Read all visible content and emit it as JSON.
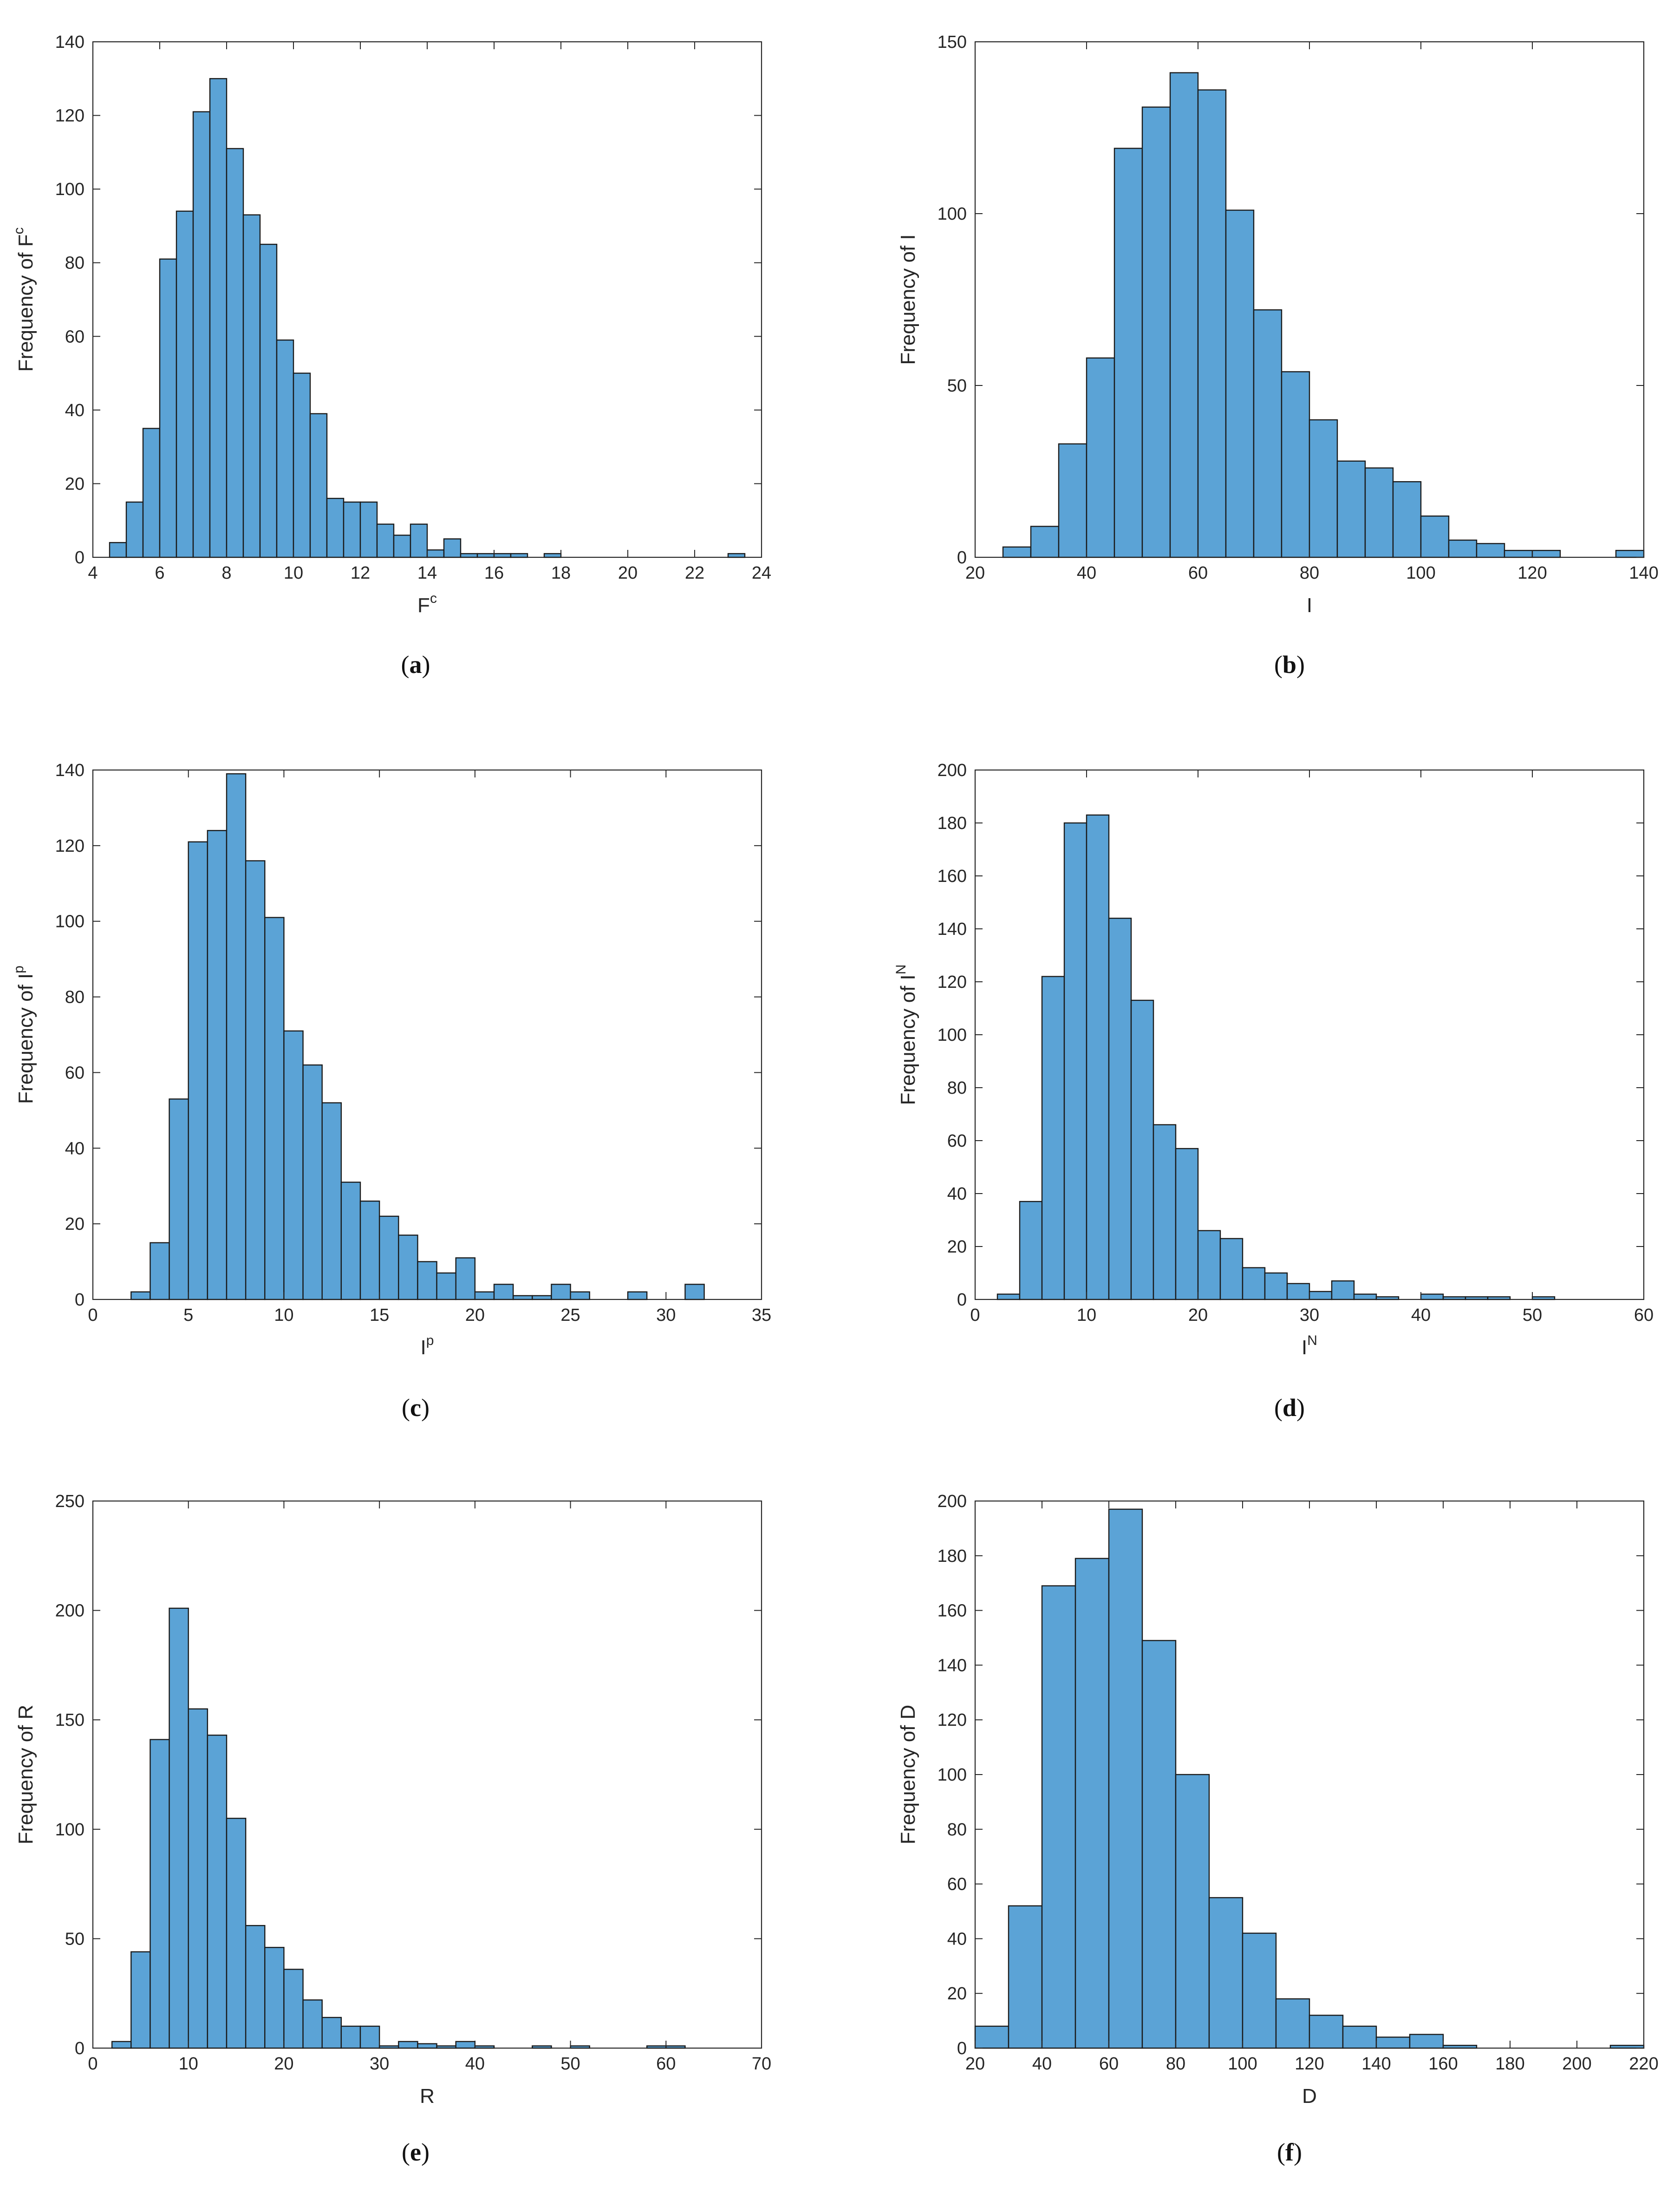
{
  "chart_data": [
    {
      "type": "bar",
      "id": "a",
      "caption_letter": "a",
      "xlabel_base": "F",
      "xlabel_sup": "c",
      "ylabel_base": "Frequency of F",
      "ylabel_sup": "c",
      "xlim": [
        4,
        24
      ],
      "ylim": [
        0,
        140
      ],
      "xticks": [
        4,
        6,
        8,
        10,
        12,
        14,
        16,
        18,
        20,
        22,
        24
      ],
      "yticks": [
        0,
        20,
        40,
        60,
        80,
        100,
        120,
        140
      ],
      "bin_start": 4.5,
      "bin_width": 0.5,
      "values": [
        4,
        15,
        35,
        81,
        94,
        121,
        130,
        111,
        93,
        85,
        59,
        50,
        39,
        16,
        15,
        15,
        9,
        6,
        9,
        2,
        5,
        1,
        1,
        1,
        1,
        0,
        1,
        0,
        0,
        0,
        0,
        0,
        0,
        0,
        0,
        0,
        0,
        1
      ]
    },
    {
      "type": "bar",
      "id": "b",
      "caption_letter": "b",
      "xlabel_base": "I",
      "xlabel_sup": "",
      "ylabel_base": "Frequency of I",
      "ylabel_sup": "",
      "xlim": [
        20,
        140
      ],
      "ylim": [
        0,
        150
      ],
      "xticks": [
        20,
        40,
        60,
        80,
        100,
        120,
        140
      ],
      "yticks": [
        0,
        50,
        100,
        150
      ],
      "bin_start": 25,
      "bin_width": 5,
      "values": [
        3,
        9,
        33,
        58,
        119,
        131,
        141,
        136,
        101,
        72,
        54,
        40,
        28,
        26,
        22,
        12,
        5,
        4,
        2,
        2,
        0,
        0,
        2
      ]
    },
    {
      "type": "bar",
      "id": "c",
      "caption_letter": "c",
      "xlabel_base": "I",
      "xlabel_sup": "p",
      "ylabel_base": "Frequency of I",
      "ylabel_sup": "p",
      "xlim": [
        0,
        35
      ],
      "ylim": [
        0,
        140
      ],
      "xticks": [
        0,
        5,
        10,
        15,
        20,
        25,
        30,
        35
      ],
      "yticks": [
        0,
        20,
        40,
        60,
        80,
        100,
        120,
        140
      ],
      "bin_start": 2,
      "bin_width": 1,
      "values": [
        2,
        15,
        53,
        121,
        124,
        139,
        116,
        101,
        71,
        62,
        52,
        31,
        26,
        22,
        17,
        10,
        7,
        11,
        2,
        4,
        1,
        1,
        4,
        2,
        0,
        0,
        2,
        0,
        0,
        4
      ]
    },
    {
      "type": "bar",
      "id": "d",
      "caption_letter": "d",
      "xlabel_base": "I",
      "xlabel_sup": "N",
      "ylabel_base": "Frequency of I",
      "ylabel_sup": "N",
      "xlim": [
        0,
        60
      ],
      "ylim": [
        0,
        200
      ],
      "xticks": [
        0,
        10,
        20,
        30,
        40,
        50,
        60
      ],
      "yticks": [
        0,
        20,
        40,
        60,
        80,
        100,
        120,
        140,
        160,
        180,
        200
      ],
      "bin_start": 2,
      "bin_width": 2,
      "values": [
        2,
        37,
        122,
        180,
        183,
        144,
        113,
        66,
        57,
        26,
        23,
        12,
        10,
        6,
        3,
        7,
        2,
        1,
        0,
        2,
        1,
        1,
        1,
        0,
        1
      ]
    },
    {
      "type": "bar",
      "id": "e",
      "caption_letter": "e",
      "xlabel_base": "R",
      "xlabel_sup": "",
      "ylabel_base": "Frequency of R",
      "ylabel_sup": "",
      "xlim": [
        0,
        70
      ],
      "ylim": [
        0,
        250
      ],
      "xticks": [
        0,
        10,
        20,
        30,
        40,
        50,
        60,
        70
      ],
      "yticks": [
        0,
        50,
        100,
        150,
        200,
        250
      ],
      "bin_start": 2,
      "bin_width": 2,
      "values": [
        3,
        44,
        141,
        201,
        155,
        143,
        105,
        56,
        46,
        36,
        22,
        14,
        10,
        10,
        1,
        3,
        2,
        1,
        3,
        1,
        0,
        0,
        1,
        0,
        1,
        0,
        0,
        0,
        1,
        1
      ]
    },
    {
      "type": "bar",
      "id": "f",
      "caption_letter": "f",
      "xlabel_base": "D",
      "xlabel_sup": "",
      "ylabel_base": "Frequency of D",
      "ylabel_sup": "",
      "xlim": [
        20,
        220
      ],
      "ylim": [
        0,
        200
      ],
      "xticks": [
        20,
        40,
        60,
        80,
        100,
        120,
        140,
        160,
        180,
        200,
        220
      ],
      "yticks": [
        0,
        20,
        40,
        60,
        80,
        100,
        120,
        140,
        160,
        180,
        200
      ],
      "bin_start": 20,
      "bin_width": 10,
      "values": [
        8,
        52,
        169,
        179,
        197,
        149,
        100,
        55,
        42,
        18,
        12,
        8,
        4,
        5,
        1,
        0,
        0,
        0,
        0,
        1
      ]
    }
  ],
  "style": {
    "bar_fill": "#5ba3d6",
    "bar_edge": "#1a1a1a",
    "axis_color": "#262626"
  }
}
